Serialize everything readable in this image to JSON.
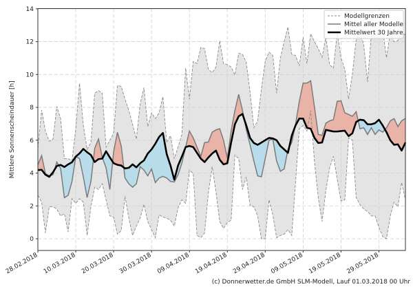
{
  "chart_data": {
    "type": "line",
    "title": "",
    "xlabel": "",
    "ylabel": "Mittlere Sonnenscheindauer [h]",
    "ylim": [
      -0.7,
      14
    ],
    "yticks": [
      "0",
      "2",
      "4",
      "6",
      "8",
      "10",
      "12",
      "14"
    ],
    "xtick_labels": [
      "28.02.2018",
      "10.03.2018",
      "20.03.2018",
      "30.03.2018",
      "09.04.2018",
      "19.04.2018",
      "29.04.2018",
      "09.05.2018",
      "19.05.2018",
      "29.05.2018"
    ],
    "grid": true,
    "legend_position": "top-right",
    "legend": [
      "Modellgrenzen",
      "Mittel aller Modelle",
      "Mittelwert 30 Jahre"
    ],
    "colors": {
      "band": "#e4e4e4",
      "bounds": "#8a8a8a",
      "model_mean": "#7a7a7a",
      "climate": "#000000",
      "above": "#e9b4a7",
      "below": "#b9dcea",
      "grid": "#cfcfcf"
    },
    "x": [
      "2018-02-28",
      "2018-03-01",
      "2018-03-02",
      "2018-03-03",
      "2018-03-04",
      "2018-03-05",
      "2018-03-06",
      "2018-03-07",
      "2018-03-08",
      "2018-03-09",
      "2018-03-10",
      "2018-03-11",
      "2018-03-12",
      "2018-03-13",
      "2018-03-14",
      "2018-03-15",
      "2018-03-16",
      "2018-03-17",
      "2018-03-18",
      "2018-03-19",
      "2018-03-20",
      "2018-03-21",
      "2018-03-22",
      "2018-03-23",
      "2018-03-24",
      "2018-03-25",
      "2018-03-26",
      "2018-03-27",
      "2018-03-28",
      "2018-03-29",
      "2018-03-30",
      "2018-03-31",
      "2018-04-01",
      "2018-04-02",
      "2018-04-03",
      "2018-04-04",
      "2018-04-05",
      "2018-04-06",
      "2018-04-07",
      "2018-04-08",
      "2018-04-09",
      "2018-04-10",
      "2018-04-11",
      "2018-04-12",
      "2018-04-13",
      "2018-04-14",
      "2018-04-15",
      "2018-04-16",
      "2018-04-17",
      "2018-04-18",
      "2018-04-19",
      "2018-04-20",
      "2018-04-21",
      "2018-04-22",
      "2018-04-23",
      "2018-04-24",
      "2018-04-25",
      "2018-04-26",
      "2018-04-27",
      "2018-04-28",
      "2018-04-29",
      "2018-04-30",
      "2018-05-01",
      "2018-05-02",
      "2018-05-03",
      "2018-05-04",
      "2018-05-05",
      "2018-05-06",
      "2018-05-07",
      "2018-05-08",
      "2018-05-09",
      "2018-05-10",
      "2018-05-11",
      "2018-05-12",
      "2018-05-13",
      "2018-05-14",
      "2018-05-15",
      "2018-05-16",
      "2018-05-17",
      "2018-05-18",
      "2018-05-19",
      "2018-05-20",
      "2018-05-21",
      "2018-05-22",
      "2018-05-23",
      "2018-05-24",
      "2018-05-25",
      "2018-05-26",
      "2018-05-27",
      "2018-05-28",
      "2018-05-29",
      "2018-05-30",
      "2018-05-31",
      "2018-06-01",
      "2018-06-02",
      "2018-06-03",
      "2018-06-04",
      "2018-06-05"
    ],
    "series": [
      {
        "name": "Modellgrenzen",
        "role": "upper",
        "values": [
          5.5,
          7.84,
          6.55,
          5.93,
          6.07,
          8.06,
          7.32,
          4.88,
          4.88,
          4.74,
          6.7,
          9.46,
          6.9,
          5.44,
          5.86,
          8.86,
          9.02,
          8.86,
          5.58,
          6.0,
          6.42,
          9.34,
          9.27,
          8.5,
          7.81,
          6.97,
          6.07,
          8.23,
          9.2,
          6.83,
          7.67,
          7.32,
          7.67,
          8.65,
          5.86,
          6.28,
          4.88,
          5.58,
          6.35,
          10.39,
          8.5,
          10.8,
          10.67,
          11.65,
          11.58,
          10.32,
          10.11,
          10.46,
          12.06,
          10.67,
          10.6,
          10.46,
          9.97,
          11.3,
          11.23,
          10.74,
          8.93,
          6.76,
          7.18,
          9.13,
          10.81,
          11.37,
          11.16,
          8.86,
          11.02,
          12.0,
          12.9,
          11.23,
          11.16,
          10.53,
          12.27,
          10.67,
          12.48,
          12.0,
          11.58,
          11.05,
          12.27,
          10.6,
          10.39,
          12.55,
          11.02,
          10.32,
          8.5,
          10.04,
          12.13,
          12.62,
          11.79,
          9.55,
          12.41,
          12.41,
          12.69,
          12.76,
          11.02,
          12.55,
          12.0,
          12.06,
          12.55,
          12.41
        ]
      },
      {
        "name": "Modellgrenzen",
        "role": "lower",
        "values": [
          2.65,
          2.23,
          0.35,
          1.95,
          1.95,
          1.81,
          1.39,
          1.53,
          0.42,
          2.44,
          2.16,
          2.44,
          2.23,
          0.2,
          1.95,
          3.14,
          3.0,
          3.35,
          2.37,
          1.39,
          1.32,
          0.28,
          0.49,
          2.58,
          1.26,
          0.2,
          0.77,
          1.26,
          2.09,
          1.05,
          0.56,
          0.07,
          1.46,
          1.32,
          1.26,
          1.12,
          0.77,
          1.88,
          2.37,
          2.16,
          4.18,
          3.97,
          0.2,
          0.07,
          0.35,
          2.79,
          4.39,
          2.86,
          1.05,
          0.63,
          1.0,
          1.12,
          5.09,
          4.88,
          3.0,
          3.77,
          2.02,
          1.95,
          1.39,
          0,
          0,
          2.37,
          1.46,
          0.07,
          0.2,
          0.28,
          0.56,
          0.2,
          3.42,
          6.7,
          6.9,
          6.56,
          7.81,
          4.67,
          2.51,
          1.05,
          2.93,
          4.32,
          5.02,
          3.63,
          2.3,
          2.37,
          6.14,
          6.0,
          2.51,
          2.09,
          1.81,
          1.67,
          1.39,
          1.39,
          0.7,
          0.14,
          0,
          1.39,
          2.23,
          1.95,
          3.42,
          2.37
        ]
      },
      {
        "name": "Mittel aller Modelle",
        "role": "model_mean",
        "values": [
          4.5,
          5.06,
          3.97,
          3.83,
          3.9,
          4.67,
          4.28,
          2.5,
          2.65,
          3.49,
          5.0,
          4.88,
          3.77,
          2.51,
          3.49,
          5.5,
          6.07,
          4.95,
          4.32,
          3.0,
          5.3,
          6.48,
          5.65,
          3.7,
          3.35,
          3.14,
          3.35,
          4.39,
          4.18,
          3.83,
          4.25,
          3.42,
          3.7,
          3.8,
          3.7,
          3.49,
          3.46,
          3.9,
          4.6,
          5.58,
          6.56,
          6.14,
          5.58,
          5.02,
          5.86,
          5.89,
          6.49,
          6.63,
          6.7,
          6.0,
          4.9,
          6.56,
          7.81,
          8.79,
          7.81,
          6.63,
          5.72,
          4.74,
          3.83,
          3.77,
          4.88,
          6.0,
          6.07,
          4.74,
          4.11,
          4.25,
          5.44,
          5.86,
          6.97,
          8.37,
          9.48,
          9.48,
          9.62,
          8.01,
          6.35,
          6.3,
          7.04,
          7.18,
          7.25,
          8.37,
          8.4,
          7.67,
          7.57,
          7.46,
          7.74,
          6.7,
          6.76,
          6.35,
          6.76,
          6.35,
          6.63,
          6.49,
          6.76,
          7.18,
          7.32,
          6.83,
          7.18,
          7.32
        ]
      },
      {
        "name": "Mittelwert 30 Jahre",
        "role": "climate",
        "values": [
          4.18,
          4.2,
          3.9,
          3.77,
          4.05,
          4.43,
          4.5,
          4.37,
          4.53,
          4.66,
          5.0,
          5.2,
          5.47,
          5.27,
          5.1,
          4.67,
          4.85,
          4.88,
          5.33,
          4.95,
          4.6,
          4.5,
          4.46,
          4.28,
          4.32,
          4.53,
          4.35,
          4.6,
          4.77,
          5.19,
          5.44,
          5.79,
          6.2,
          6.44,
          5.16,
          4.46,
          3.6,
          4.46,
          5.0,
          5.58,
          5.65,
          5.58,
          5.23,
          4.88,
          4.67,
          4.95,
          5.19,
          5.37,
          4.81,
          4.53,
          4.6,
          5.86,
          6.97,
          7.46,
          7.6,
          6.9,
          6.14,
          5.83,
          5.72,
          5.86,
          6.0,
          6.14,
          6.11,
          6.0,
          5.65,
          5.44,
          5.23,
          6.28,
          6.9,
          7.32,
          7.32,
          6.76,
          6.7,
          6.14,
          5.83,
          5.86,
          6.63,
          6.58,
          6.53,
          6.53,
          6.56,
          6.58,
          6.25,
          6.42,
          7.11,
          7.25,
          7.22,
          6.97,
          6.97,
          7.04,
          7.25,
          6.9,
          6.49,
          6.0,
          5.72,
          5.75,
          5.37,
          5.86
        ]
      }
    ]
  },
  "footer": "(c) Donnerwetter.de GmbH SLM-Modell, Lauf 01.03.2018 00 Uhr"
}
